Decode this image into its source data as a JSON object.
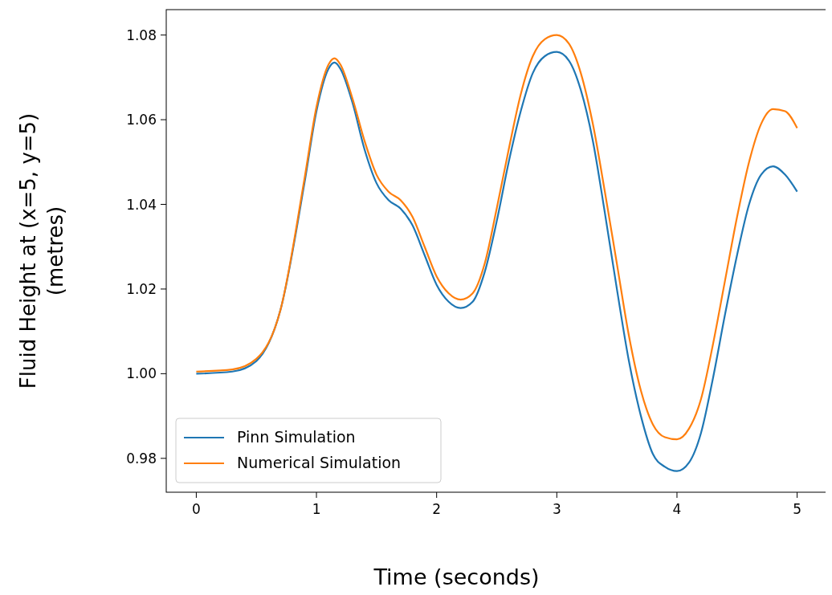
{
  "chart_data": {
    "type": "line",
    "xlabel": "Time (seconds)",
    "ylabel": "Fluid Height at (x=5, y=5)\n(metres)",
    "xlim": [
      -0.25,
      5.25
    ],
    "xticks": [
      0,
      1,
      2,
      3,
      4,
      5
    ],
    "ylim": [
      0.972,
      1.086
    ],
    "yticks": [
      {
        "value": 0.98,
        "label": "0.98"
      },
      {
        "value": 1.0,
        "label": "1.00"
      },
      {
        "value": 1.02,
        "label": "1.02"
      },
      {
        "value": 1.04,
        "label": "1.04"
      },
      {
        "value": 1.06,
        "label": "1.06"
      },
      {
        "value": 1.08,
        "label": "1.08"
      }
    ],
    "legend": "bottom left",
    "grid": false,
    "x": [
      0,
      0.3,
      0.5,
      0.7,
      0.9,
      1.0,
      1.1,
      1.15,
      1.2,
      1.3,
      1.4,
      1.5,
      1.6,
      1.7,
      1.8,
      1.9,
      2.0,
      2.1,
      2.2,
      2.3,
      2.4,
      2.5,
      2.6,
      2.7,
      2.8,
      2.9,
      3.0,
      3.1,
      3.2,
      3.3,
      3.4,
      3.5,
      3.6,
      3.7,
      3.8,
      3.9,
      4.0,
      4.1,
      4.2,
      4.3,
      4.4,
      4.5,
      4.6,
      4.7,
      4.8,
      4.9,
      5.0
    ],
    "series": [
      {
        "name": "Pinn Simulation",
        "color": "#1f77b4",
        "values": [
          1.0,
          1.0005,
          1.003,
          1.015,
          1.045,
          1.062,
          1.072,
          1.0735,
          1.072,
          1.064,
          1.053,
          1.045,
          1.041,
          1.039,
          1.035,
          1.028,
          1.021,
          1.017,
          1.0155,
          1.017,
          1.024,
          1.036,
          1.05,
          1.062,
          1.071,
          1.075,
          1.076,
          1.074,
          1.067,
          1.055,
          1.038,
          1.02,
          1.003,
          0.99,
          0.981,
          0.978,
          0.977,
          0.979,
          0.986,
          0.999,
          1.014,
          1.028,
          1.04,
          1.047,
          1.049,
          1.047,
          1.043
        ]
      },
      {
        "name": "Numerical Simulation",
        "color": "#ff7f0e",
        "values": [
          1.0005,
          1.001,
          1.0035,
          1.015,
          1.046,
          1.063,
          1.073,
          1.0745,
          1.073,
          1.065,
          1.055,
          1.047,
          1.043,
          1.041,
          1.037,
          1.03,
          1.023,
          1.019,
          1.0175,
          1.019,
          1.026,
          1.039,
          1.053,
          1.066,
          1.075,
          1.079,
          1.08,
          1.078,
          1.071,
          1.059,
          1.043,
          1.026,
          1.009,
          0.996,
          0.988,
          0.985,
          0.9845,
          0.987,
          0.994,
          1.007,
          1.022,
          1.037,
          1.05,
          1.059,
          1.0625,
          1.062,
          1.058
        ]
      }
    ]
  }
}
